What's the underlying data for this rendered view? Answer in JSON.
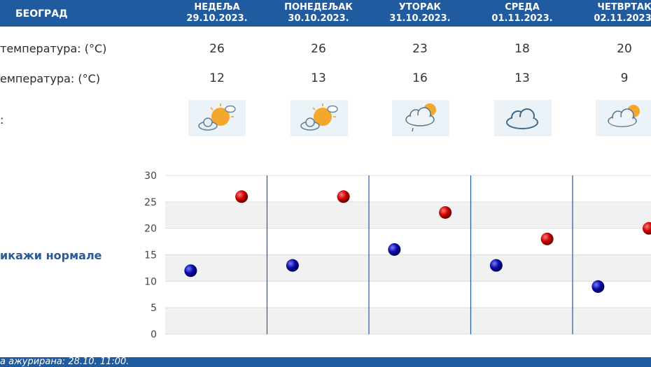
{
  "header": {
    "city": "БЕОГРАД"
  },
  "days": [
    {
      "name": "НЕДЕЉА",
      "date": "29.10.2023.",
      "max": "26",
      "min": "12",
      "icon": "sun-cloud-icon"
    },
    {
      "name": "ПОНЕДЕЉАК",
      "date": "30.10.2023.",
      "max": "26",
      "min": "13",
      "icon": "sun-cloud-icon"
    },
    {
      "name": "УТОРАК",
      "date": "31.10.2023.",
      "max": "23",
      "min": "16",
      "icon": "cloud-sun-drizzle-icon"
    },
    {
      "name": "СРЕДА",
      "date": "01.11.2023.",
      "max": "18",
      "min": "13",
      "icon": "cloud-icon"
    },
    {
      "name": "ЧЕТВРТАК",
      "date": "02.11.2023.",
      "max": "20",
      "min": "9",
      "icon": "cloud-sun-icon"
    }
  ],
  "rows": {
    "max_label": "температура: (°C)",
    "min_label": "емпература: (°C)",
    "weather_label": ":"
  },
  "normals_link": "икажи нормале",
  "footer": {
    "updated": "а ажурирана:  28.10. 11:00."
  },
  "colors": {
    "header": "#1f5b9e",
    "max_marker": "#cc0000",
    "min_marker": "#0a0aa8",
    "divider": "#1f5b9e"
  },
  "chart_data": {
    "type": "scatter",
    "categories": [
      "29.10.2023.",
      "30.10.2023.",
      "31.10.2023.",
      "01.11.2023.",
      "02.11.2023."
    ],
    "series": [
      {
        "values": [
          26,
          26,
          23,
          18,
          20
        ],
        "color": "#cc0000"
      },
      {
        "values": [
          12,
          13,
          16,
          13,
          9
        ],
        "color": "#0a0aa8"
      }
    ],
    "ylim": [
      0,
      30
    ],
    "yticks": [
      "0",
      "5",
      "10",
      "15",
      "20",
      "25",
      "30"
    ],
    "grid": true
  }
}
